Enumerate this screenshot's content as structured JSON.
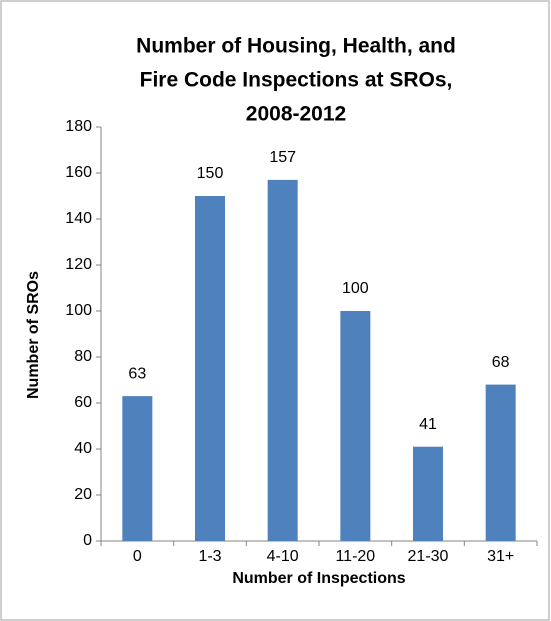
{
  "chart_data": {
    "type": "bar",
    "title": [
      "Number of Housing, Health, and",
      "Fire Code Inspections at SROs,",
      "2008-2012"
    ],
    "x_label": "Number of Inspections",
    "y_label": "Number of SROs",
    "categories": [
      "0",
      "1-3",
      "4-10",
      "11-20",
      "21-30",
      "31+"
    ],
    "values": [
      63,
      150,
      157,
      100,
      41,
      68
    ],
    "color": "#4f81bd",
    "ylim": [
      0,
      180
    ],
    "yticks": [
      0,
      20,
      40,
      60,
      80,
      100,
      120,
      140,
      160,
      180
    ],
    "grid": false,
    "data_labels": true
  }
}
